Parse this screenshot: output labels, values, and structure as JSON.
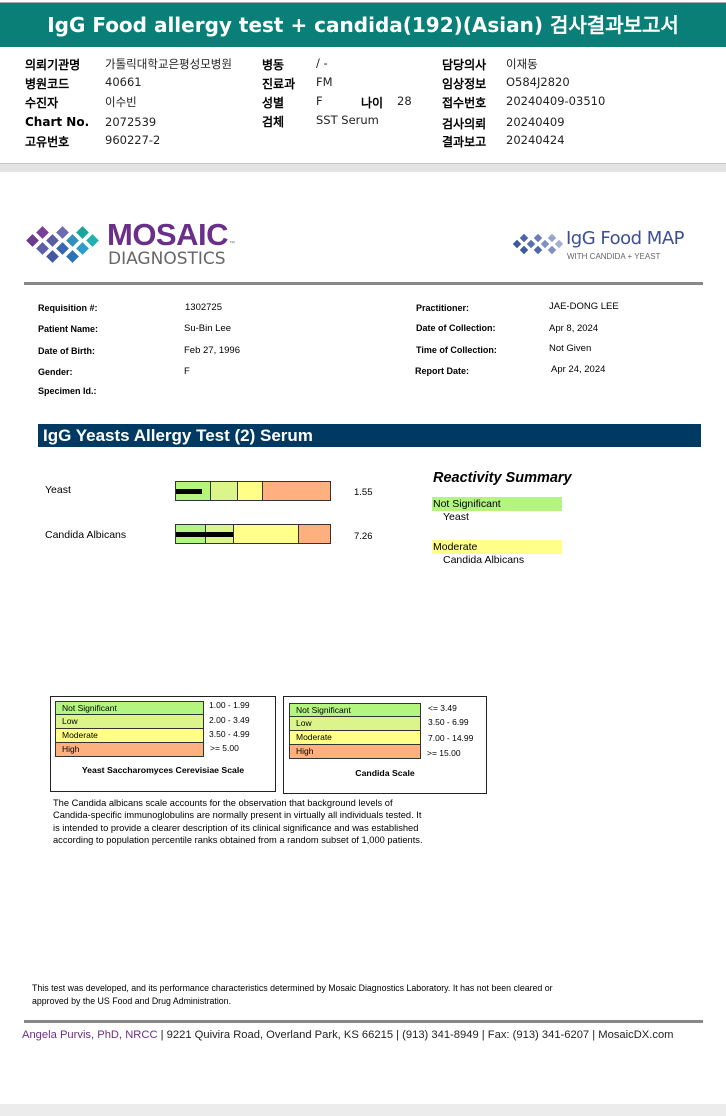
{
  "title": "IgG Food allergy test + candida(192)(Asian) 검사결과보고서",
  "header_info": {
    "col1": [
      {
        "label": "의뢰기관명",
        "value": "가톨릭대학교은평성모병원"
      },
      {
        "label": "병원코드",
        "value": "40661"
      },
      {
        "label": "수진자",
        "value": "이수빈"
      },
      {
        "label": "Chart No.",
        "value": "2072539"
      },
      {
        "label": "고유번호",
        "value": "960227-2"
      }
    ],
    "col2": [
      {
        "label": "병동",
        "value": "/ -"
      },
      {
        "label": "진료과",
        "value": "FM"
      },
      {
        "label": "성별",
        "value": "F"
      },
      {
        "label": "검체",
        "value": "SST Serum"
      }
    ],
    "age": {
      "label": "나이",
      "value": "28"
    },
    "col3": [
      {
        "label": "담당의사",
        "value": "이재동"
      },
      {
        "label": "임상정보",
        "value": "O584J2820"
      },
      {
        "label": "접수번호",
        "value": "20240409-03510"
      },
      {
        "label": "검사의뢰",
        "value": "20240409"
      },
      {
        "label": "결과보고",
        "value": "20240424"
      }
    ]
  },
  "logos": {
    "mosaic_line1": "MOSAIC",
    "mosaic_line2": "DIAGNOSTICS",
    "tm": "™",
    "foodmap_line1": "IgG Food MAP",
    "foodmap_line2": "WITH CANDIDA + YEAST"
  },
  "patient": {
    "left": [
      {
        "label": "Requisition #:",
        "value": "1302725"
      },
      {
        "label": "Patient Name:",
        "value": "Su-Bin Lee"
      },
      {
        "label": "Date of Birth:",
        "value": "Feb 27, 1996"
      },
      {
        "label": "Gender:",
        "value": "F"
      },
      {
        "label": "Specimen Id.:",
        "value": ""
      }
    ],
    "right": [
      {
        "label": "Practitioner:",
        "value": "JAE-DONG LEE"
      },
      {
        "label": "Date of Collection:",
        "value": "Apr 8, 2024"
      },
      {
        "label": "Time of Collection:",
        "value": "Not Given"
      },
      {
        "label": "Report Date:",
        "value": "Apr 24, 2024"
      }
    ]
  },
  "section_title": "IgG Yeasts Allergy Test (2) Serum",
  "colors": {
    "not_significant": "#b3f57f",
    "low": "#dcf58a",
    "moderate": "#ffff8a",
    "high": "#ffb07e",
    "section": "#003a63",
    "title": "#0a7f78"
  },
  "results": [
    {
      "name": "Yeast",
      "value": "1.55",
      "level_fraction": 0.17
    },
    {
      "name": "Candida Albicans",
      "value": "7.26",
      "level_fraction": 0.37
    }
  ],
  "summary": {
    "title": "Reactivity Summary",
    "groups": [
      {
        "level": "Not Significant",
        "items": [
          "Yeast"
        ]
      },
      {
        "level": "Moderate",
        "items": [
          "Candida Albicans"
        ]
      }
    ]
  },
  "scales": [
    {
      "title": "Yeast Saccharomyces Cerevisiae Scale",
      "rows": [
        {
          "level": "Not Significant",
          "range": "1.00 - 1.99"
        },
        {
          "level": "Low",
          "range": "2.00 - 3.49"
        },
        {
          "level": "Moderate",
          "range": "3.50 - 4.99"
        },
        {
          "level": "High",
          "range": ">= 5.00"
        }
      ]
    },
    {
      "title": "Candida Scale",
      "rows": [
        {
          "level": "Not Significant",
          "range": "<= 3.49"
        },
        {
          "level": "Low",
          "range": "3.50 - 6.99"
        },
        {
          "level": "Moderate",
          "range": "7.00 - 14.99"
        },
        {
          "level": "High",
          "range": ">= 15.00"
        }
      ]
    }
  ],
  "candida_note": [
    "The Candida albicans scale accounts for the observation that background levels of",
    "Candida-specific immunoglobulins are normally present in virtually all individuals tested. It",
    "is intended to provide a clearer description of its clinical significance and was established",
    "according to population percentile ranks obtained from a random subset of 1,000 patients."
  ],
  "disclaimer": [
    "This test was developed, and its performance characteristics determined by Mosaic Diagnostics Laboratory. It has not been cleared or",
    "approved by the US Food and Drug Administration."
  ],
  "footer": {
    "signer": "Angela Purvis, PhD, NRCC",
    "rest": " | 9221 Quivira Road, Overland Park, KS 66215  |  (913) 341-8949  |  Fax: (913) 341-6207 | MosaicDX.com"
  }
}
